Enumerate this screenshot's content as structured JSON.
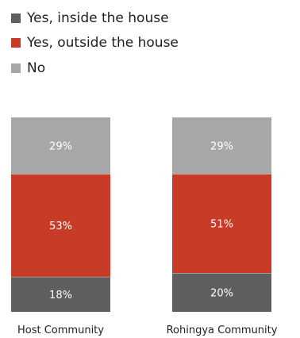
{
  "chart_data": {
    "type": "bar",
    "stacked": true,
    "percent": true,
    "categories": [
      "Host Community",
      "Rohingya Community"
    ],
    "series": [
      {
        "name": "Yes, inside the house",
        "color": "#5f5f5f",
        "values": [
          18,
          20
        ],
        "labels": [
          "18%",
          "20%"
        ]
      },
      {
        "name": "Yes, outside the house",
        "color": "#c73b27",
        "values": [
          53,
          51
        ],
        "labels": [
          "53%",
          "51%"
        ]
      },
      {
        "name": "No",
        "color": "#a7a7a9",
        "values": [
          29,
          29
        ],
        "labels": [
          "29%",
          "29%"
        ]
      }
    ],
    "ylim": [
      0,
      100
    ],
    "legend_position": "top-left",
    "grid": false
  }
}
